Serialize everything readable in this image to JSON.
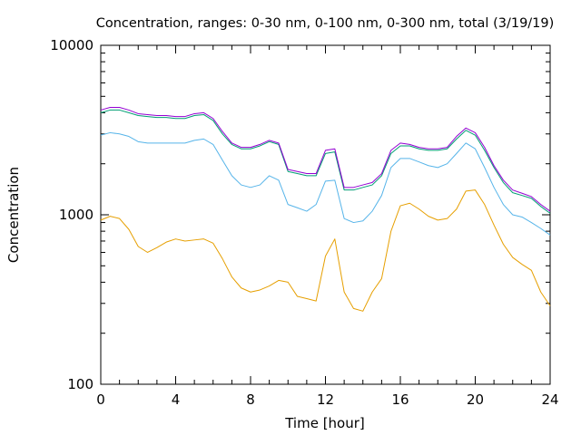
{
  "chart_data": {
    "type": "line",
    "title": "Concentration, ranges: 0-30 nm, 0-100 nm, 0-300 nm, total (3/19/19)",
    "xlabel": "Time [hour]",
    "ylabel": "Concentration",
    "xlim": [
      0,
      24
    ],
    "ylim": [
      100,
      10000
    ],
    "yscale": "log",
    "grid": false,
    "legend": "none",
    "xticks": [
      0,
      4,
      8,
      12,
      16,
      20,
      24
    ],
    "xtick_labels": [
      "0",
      "4",
      "8",
      "12",
      "16",
      "20",
      "24"
    ],
    "yticks": [
      100,
      1000,
      10000
    ],
    "ytick_labels": [
      "100",
      "1000",
      "10000"
    ],
    "x": [
      0,
      0.5,
      1,
      1.5,
      2,
      2.5,
      3,
      3.5,
      4,
      4.5,
      5,
      5.5,
      6,
      6.5,
      7,
      7.5,
      8,
      8.5,
      9,
      9.5,
      10,
      10.5,
      11,
      11.5,
      12,
      12.5,
      13,
      13.5,
      14,
      14.5,
      15,
      15.5,
      16,
      16.5,
      17,
      17.5,
      18,
      18.5,
      19,
      19.5,
      20,
      20.5,
      21,
      21.5,
      22,
      22.5,
      23,
      23.5,
      24
    ],
    "series": [
      {
        "color": "#e69f00",
        "values": [
          930,
          980,
          950,
          820,
          650,
          600,
          640,
          690,
          720,
          700,
          710,
          720,
          680,
          550,
          430,
          370,
          350,
          360,
          380,
          410,
          400,
          330,
          320,
          310,
          570,
          720,
          350,
          280,
          270,
          350,
          420,
          800,
          1130,
          1170,
          1080,
          980,
          930,
          950,
          1080,
          1380,
          1400,
          1150,
          870,
          670,
          560,
          510,
          470,
          350,
          290
        ]
      },
      {
        "color": "#56b4e9",
        "values": [
          2950,
          3050,
          3000,
          2900,
          2700,
          2650,
          2650,
          2650,
          2650,
          2650,
          2750,
          2800,
          2600,
          2100,
          1700,
          1500,
          1450,
          1500,
          1700,
          1600,
          1150,
          1100,
          1050,
          1150,
          1580,
          1600,
          950,
          900,
          920,
          1050,
          1300,
          1900,
          2150,
          2150,
          2050,
          1950,
          1900,
          2000,
          2300,
          2650,
          2450,
          1900,
          1450,
          1150,
          1000,
          970,
          900,
          830,
          760
        ]
      },
      {
        "color": "#009e73",
        "values": [
          4000,
          4150,
          4150,
          4000,
          3850,
          3800,
          3750,
          3750,
          3700,
          3700,
          3850,
          3900,
          3600,
          3000,
          2600,
          2450,
          2450,
          2550,
          2700,
          2600,
          1800,
          1750,
          1700,
          1700,
          2300,
          2350,
          1400,
          1400,
          1450,
          1500,
          1700,
          2300,
          2550,
          2550,
          2450,
          2400,
          2400,
          2450,
          2800,
          3150,
          2950,
          2400,
          1900,
          1550,
          1350,
          1300,
          1250,
          1120,
          1020
        ]
      },
      {
        "color": "#9400d3",
        "values": [
          4150,
          4300,
          4300,
          4150,
          3950,
          3900,
          3850,
          3850,
          3800,
          3800,
          3950,
          4000,
          3700,
          3100,
          2650,
          2500,
          2500,
          2600,
          2750,
          2650,
          1850,
          1800,
          1750,
          1750,
          2400,
          2450,
          1450,
          1450,
          1500,
          1550,
          1750,
          2400,
          2650,
          2600,
          2500,
          2450,
          2450,
          2500,
          2900,
          3250,
          3050,
          2500,
          1950,
          1600,
          1400,
          1340,
          1280,
          1150,
          1050
        ]
      }
    ]
  }
}
